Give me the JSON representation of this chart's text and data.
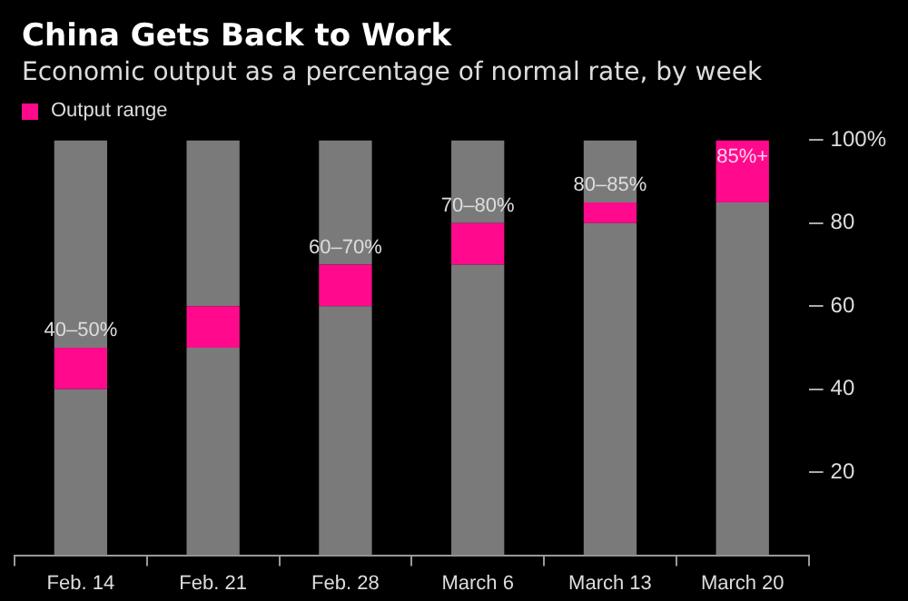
{
  "chart_data": {
    "type": "bar",
    "title": "China Gets Back to Work",
    "subtitle": "Economic output as a percentage of normal rate, by week",
    "categories": [
      "Feb. 14",
      "Feb. 21",
      "Feb. 28",
      "March 6",
      "March 13",
      "March 20"
    ],
    "stacked": true,
    "series": [
      {
        "color": "#7a7a7a",
        "values": [
          40,
          50,
          60,
          70,
          80,
          85
        ]
      },
      {
        "name": "Output range",
        "color": "#ff0a8c",
        "values": [
          10,
          10,
          10,
          10,
          5,
          15
        ]
      },
      {
        "color": "#7a7a7a",
        "values": [
          50,
          40,
          30,
          20,
          15,
          0
        ]
      }
    ],
    "annotations": [
      {
        "text": "40–50%",
        "x": "Feb. 14",
        "y": 50
      },
      {
        "text": "60–70%",
        "x": "Feb. 28",
        "y": 70
      },
      {
        "text": "70–80%",
        "x": "March 6",
        "y": 80
      },
      {
        "text": "80–85%",
        "x": "March 13",
        "y": 85
      },
      {
        "text": "85%+",
        "x": "March 20",
        "y": 100
      }
    ],
    "ylim": [
      0,
      100
    ],
    "yticks": [
      20,
      40,
      60,
      80,
      {
        "value": 100,
        "label": "100%"
      }
    ],
    "grid": false,
    "legend": "top left"
  }
}
